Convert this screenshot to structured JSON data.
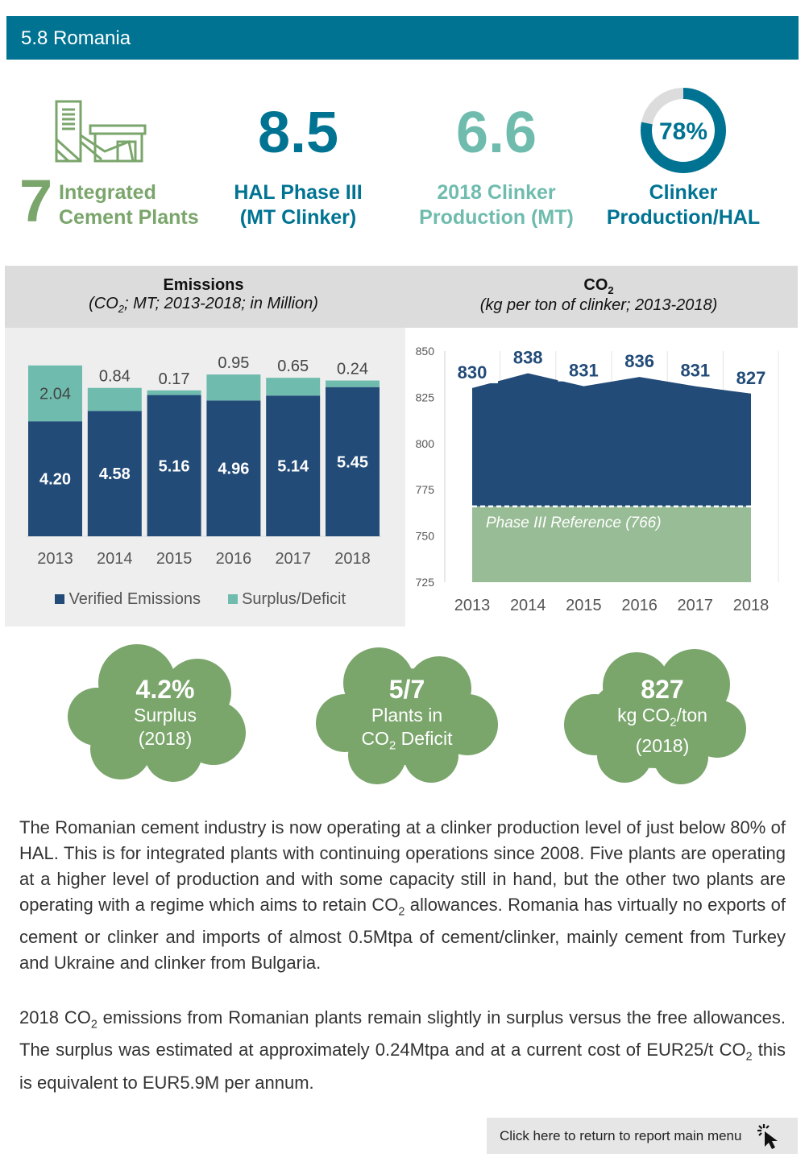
{
  "header": {
    "title": "5.8 Romania"
  },
  "kpis": {
    "plants": {
      "number": "7",
      "label_line1": "Integrated",
      "label_line2": "Cement Plants"
    },
    "hal": {
      "value": "8.5",
      "label_line1": "HAL Phase III",
      "label_line2": "(MT Clinker)"
    },
    "production": {
      "value": "6.6",
      "label_line1": "2018 Clinker",
      "label_line2": "Production (MT)"
    },
    "ratio": {
      "value": "78%",
      "fraction": 0.78,
      "label_line1": "Clinker",
      "label_line2": "Production/HAL"
    }
  },
  "colors": {
    "teal": "#007393",
    "green": "#7aa56b",
    "light_teal": "#6fbcae",
    "navy": "#224b78",
    "ref_green": "#98bc95"
  },
  "emissions_chart": {
    "title": "Emissions",
    "subtitle_pre": "(CO",
    "subtitle_sub": "2",
    "subtitle_post": "; MT; 2013-2018; in Million)",
    "legend": [
      "Verified Emissions",
      "Surplus/Deficit"
    ]
  },
  "co2_chart": {
    "title_pre": "CO",
    "title_sub": "2",
    "subtitle": "(kg per ton of clinker; 2013-2018)",
    "reference_label": "Phase III Reference (766)"
  },
  "chart_data": [
    {
      "type": "bar",
      "title": "Emissions",
      "categories": [
        "2013",
        "2014",
        "2015",
        "2016",
        "2017",
        "2018"
      ],
      "series": [
        {
          "name": "Verified Emissions",
          "values": [
            4.2,
            4.58,
            5.16,
            4.96,
            5.14,
            5.45
          ],
          "labels": [
            "4.20",
            "4.58",
            "5.16",
            "4.96",
            "5.14",
            "5.45"
          ]
        },
        {
          "name": "Surplus/Deficit",
          "values": [
            2.04,
            0.84,
            0.17,
            0.95,
            0.65,
            0.24
          ],
          "labels": [
            "2.04",
            "0.84",
            "0.17",
            "0.95",
            "0.65",
            "0.24"
          ]
        }
      ],
      "stacked": true,
      "legend": "bottom"
    },
    {
      "type": "area",
      "title": "CO2",
      "categories": [
        "2013",
        "2014",
        "2015",
        "2016",
        "2017",
        "2018"
      ],
      "values": [
        830,
        838,
        831,
        836,
        831,
        827
      ],
      "reference": 766,
      "ylim": [
        725,
        850
      ],
      "yticks": [
        "725",
        "750",
        "775",
        "800",
        "825",
        "850"
      ]
    }
  ],
  "clouds": [
    {
      "big": "4.2%",
      "line1": "Surplus",
      "line2": "(2018)"
    },
    {
      "big": "5/7",
      "line1": "Plants in",
      "line2_pre": "CO",
      "line2_sub": "2",
      "line2_post": " Deficit"
    },
    {
      "big": "827",
      "line1_pre": "kg CO",
      "line1_sub": "2",
      "line1_post": "/ton",
      "line2": "(2018)"
    }
  ],
  "body": {
    "p1_a": "The Romanian cement industry is now operating at a clinker production level of just below 80% of HAL. This is for integrated plants with continuing operations since 2008. Five plants are operating at a higher level of production and with some capacity still in hand, but the other two plants are operating with a regime which aims to retain CO",
    "p1_sub": "2",
    "p1_b": " allowances. Romania has virtually no exports of cement or clinker and imports of almost 0.5Mtpa of cement/clinker, mainly cement from Turkey and Ukraine and clinker from Bulgaria.",
    "p2_a": "2018 CO",
    "p2_sub1": "2",
    "p2_b": " emissions from Romanian plants remain slightly in surplus versus the free allowances. The surplus was estimated at approximately 0.24Mtpa and at a current cost of EUR25/t CO",
    "p2_sub2": "2",
    "p2_c": " this is equivalent to EUR5.9M per annum."
  },
  "menu_button": {
    "label": "Click here to return to report main menu",
    "icon": "pointer-click-icon"
  }
}
